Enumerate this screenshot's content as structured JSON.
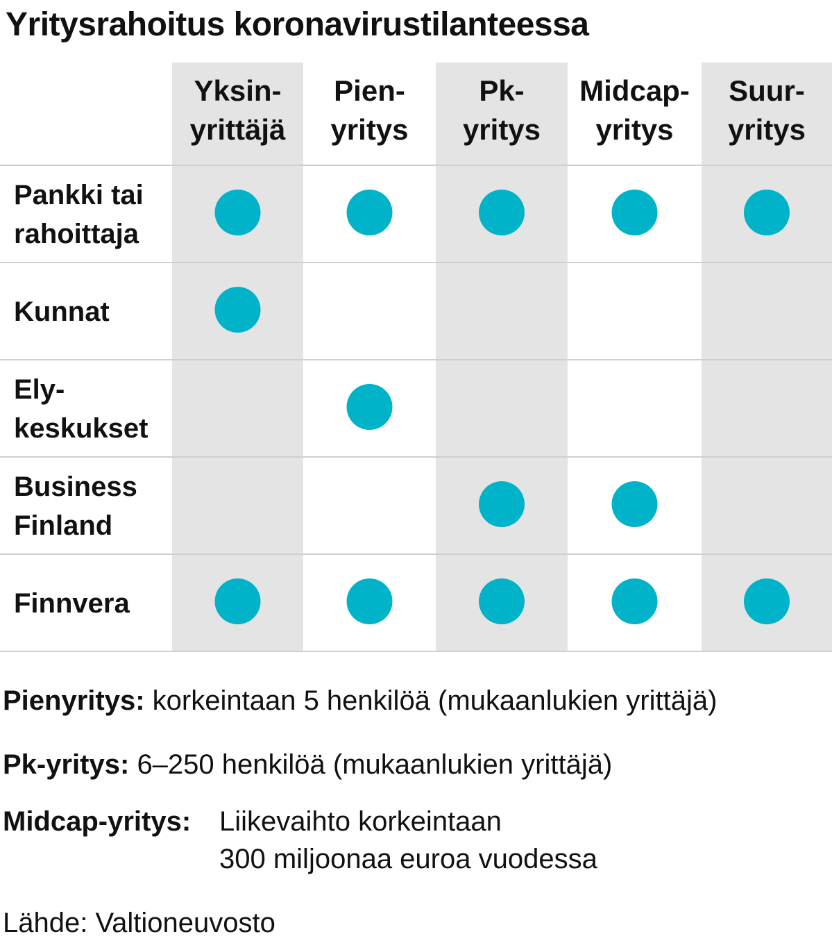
{
  "title": "Yritysrahoitus koronavirustilanteessa",
  "chart_data": {
    "type": "table",
    "columns": [
      [
        "Yksin-",
        "yrittäjä"
      ],
      [
        "Pien-",
        "yritys"
      ],
      [
        "Pk-",
        "yritys"
      ],
      [
        "Midcap-",
        "yritys"
      ],
      [
        "Suur-",
        "yritys"
      ]
    ],
    "rows": [
      {
        "label": [
          "Pankki tai",
          "rahoittaja"
        ],
        "values": [
          1,
          1,
          1,
          1,
          1
        ]
      },
      {
        "label": [
          "Kunnat"
        ],
        "values": [
          1,
          0,
          0,
          0,
          0
        ]
      },
      {
        "label": [
          "Ely-",
          "keskukset"
        ],
        "values": [
          0,
          1,
          0,
          0,
          0
        ]
      },
      {
        "label": [
          "Business",
          "Finland"
        ],
        "values": [
          0,
          0,
          1,
          1,
          0
        ]
      },
      {
        "label": [
          "Finnvera"
        ],
        "values": [
          1,
          1,
          1,
          1,
          1
        ]
      }
    ],
    "colors": {
      "dot": "#00b3c8",
      "shaded_column": "#e4e4e4",
      "divider": "#cfcfcf"
    },
    "shaded_columns": [
      0,
      2,
      4
    ]
  },
  "notes": [
    {
      "term": "Pienyritys:",
      "text": [
        "korkeintaan 5 henkilöä (mukaanlukien yrittäjä)"
      ]
    },
    {
      "term": "Pk-yritys:",
      "text": [
        "6–250 henkilöä (mukaanlukien yrittäjä)"
      ]
    },
    {
      "term": "Midcap-yritys:",
      "text": [
        "Liikevaihto korkeintaan",
        "300 miljoonaa euroa vuodessa"
      ]
    }
  ],
  "source": "Lähde: Valtioneuvosto"
}
